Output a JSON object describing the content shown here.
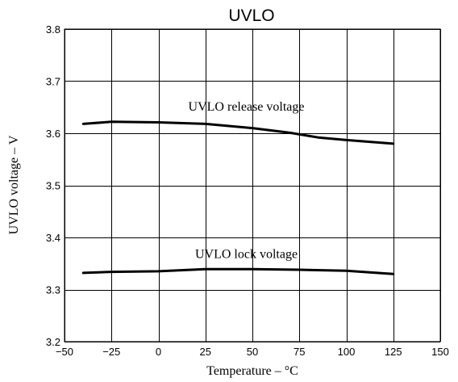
{
  "chart_data": {
    "type": "line",
    "title": "UVLO",
    "xlabel": "Temperature  –  °C",
    "ylabel": "UVLO voltage  –  V",
    "xlim": [
      -50,
      150
    ],
    "ylim": [
      3.2,
      3.8
    ],
    "xticks": [
      -50,
      -25,
      0,
      25,
      50,
      75,
      100,
      125,
      150
    ],
    "xtick_labels": [
      "−50",
      "−25",
      "0",
      "25",
      "50",
      "75",
      "100",
      "125",
      "150"
    ],
    "yticks": [
      3.2,
      3.3,
      3.4,
      3.5,
      3.6,
      3.7,
      3.8
    ],
    "ytick_labels": [
      "3.2",
      "3.3",
      "3.4",
      "3.5",
      "3.6",
      "3.7",
      "3.8"
    ],
    "grid": true,
    "series": [
      {
        "name": "UVLO release voltage",
        "x": [
          -40,
          -25,
          0,
          25,
          50,
          70,
          85,
          100,
          125
        ],
        "y": [
          3.618,
          3.622,
          3.621,
          3.618,
          3.61,
          3.601,
          3.592,
          3.587,
          3.58
        ]
      },
      {
        "name": "UVLO lock voltage",
        "x": [
          -40,
          -25,
          0,
          25,
          50,
          75,
          100,
          125
        ],
        "y": [
          3.332,
          3.334,
          3.335,
          3.339,
          3.339,
          3.338,
          3.336,
          3.33
        ]
      }
    ]
  }
}
